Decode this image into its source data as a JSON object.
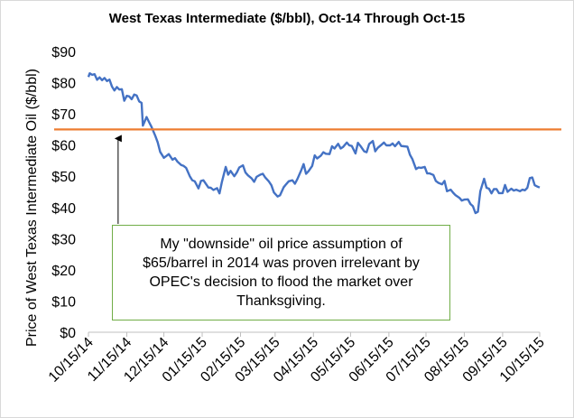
{
  "chart_data": {
    "type": "line",
    "title": "West Texas Intermediate ($/bbl), Oct-14 Through Oct-15",
    "ylabel": "Price of West Texas Intermediate Oil ($/bbl)",
    "xlabel": "",
    "ylim": [
      0,
      90
    ],
    "yticks": [
      "$0",
      "$10",
      "$20",
      "$30",
      "$40",
      "$50",
      "$60",
      "$70",
      "$80",
      "$90"
    ],
    "xlim": [
      "2014-10-15",
      "2015-10-15"
    ],
    "xticks": [
      "10/15/14",
      "11/15/14",
      "12/15/14",
      "01/15/15",
      "02/15/15",
      "03/15/15",
      "04/15/15",
      "05/15/15",
      "06/15/15",
      "07/15/15",
      "08/15/15",
      "09/15/15",
      "10/15/15"
    ],
    "grid": false,
    "colors": {
      "price": "#4472c4",
      "assumption": "#ed7d31",
      "note_border": "#70ad47",
      "axis": "#bfbfbf"
    },
    "series": [
      {
        "role": "price",
        "points": [
          [
            "2014-10-15",
            81.8
          ],
          [
            "2014-10-16",
            83.0
          ],
          [
            "2014-10-18",
            82.5
          ],
          [
            "2014-10-20",
            82.7
          ],
          [
            "2014-10-22",
            80.9
          ],
          [
            "2014-10-24",
            81.7
          ],
          [
            "2014-10-26",
            80.8
          ],
          [
            "2014-10-28",
            81.5
          ],
          [
            "2014-10-30",
            80.5
          ],
          [
            "2014-11-01",
            81.0
          ],
          [
            "2014-11-03",
            78.8
          ],
          [
            "2014-11-05",
            77.5
          ],
          [
            "2014-11-07",
            78.6
          ],
          [
            "2014-11-09",
            77.8
          ],
          [
            "2014-11-11",
            77.9
          ],
          [
            "2014-11-13",
            74.2
          ],
          [
            "2014-11-15",
            75.8
          ],
          [
            "2014-11-17",
            75.6
          ],
          [
            "2014-11-19",
            74.7
          ],
          [
            "2014-11-21",
            76.2
          ],
          [
            "2014-11-23",
            75.9
          ],
          [
            "2014-11-25",
            74.0
          ],
          [
            "2014-11-27",
            73.5
          ],
          [
            "2014-11-28",
            66.2
          ],
          [
            "2014-12-01",
            69.0
          ],
          [
            "2014-12-03",
            67.4
          ],
          [
            "2014-12-05",
            65.8
          ],
          [
            "2014-12-08",
            63.0
          ],
          [
            "2014-12-10",
            60.9
          ],
          [
            "2014-12-12",
            57.8
          ],
          [
            "2014-12-15",
            55.9
          ],
          [
            "2014-12-17",
            56.5
          ],
          [
            "2014-12-19",
            57.1
          ],
          [
            "2014-12-22",
            55.3
          ],
          [
            "2014-12-24",
            55.8
          ],
          [
            "2014-12-26",
            54.7
          ],
          [
            "2014-12-29",
            53.6
          ],
          [
            "2014-12-31",
            53.3
          ],
          [
            "2015-01-02",
            52.7
          ],
          [
            "2015-01-05",
            50.0
          ],
          [
            "2015-01-07",
            48.7
          ],
          [
            "2015-01-09",
            48.4
          ],
          [
            "2015-01-12",
            46.1
          ],
          [
            "2015-01-14",
            48.5
          ],
          [
            "2015-01-16",
            48.7
          ],
          [
            "2015-01-20",
            46.4
          ],
          [
            "2015-01-22",
            46.3
          ],
          [
            "2015-01-24",
            45.6
          ],
          [
            "2015-01-27",
            46.2
          ],
          [
            "2015-01-29",
            44.5
          ],
          [
            "2015-01-31",
            48.2
          ],
          [
            "2015-02-03",
            53.0
          ],
          [
            "2015-02-05",
            50.5
          ],
          [
            "2015-02-07",
            51.7
          ],
          [
            "2015-02-10",
            50.0
          ],
          [
            "2015-02-12",
            51.2
          ],
          [
            "2015-02-14",
            52.8
          ],
          [
            "2015-02-17",
            53.5
          ],
          [
            "2015-02-19",
            51.2
          ],
          [
            "2015-02-21",
            50.3
          ],
          [
            "2015-02-24",
            49.3
          ],
          [
            "2015-02-26",
            48.2
          ],
          [
            "2015-02-28",
            49.8
          ],
          [
            "2015-03-03",
            50.5
          ],
          [
            "2015-03-05",
            50.8
          ],
          [
            "2015-03-07",
            49.6
          ],
          [
            "2015-03-10",
            48.3
          ],
          [
            "2015-03-12",
            47.1
          ],
          [
            "2015-03-14",
            44.8
          ],
          [
            "2015-03-17",
            43.5
          ],
          [
            "2015-03-19",
            43.9
          ],
          [
            "2015-03-22",
            46.5
          ],
          [
            "2015-03-24",
            47.5
          ],
          [
            "2015-03-26",
            48.4
          ],
          [
            "2015-03-29",
            48.7
          ],
          [
            "2015-03-31",
            47.6
          ],
          [
            "2015-04-02",
            49.1
          ],
          [
            "2015-04-05",
            51.8
          ],
          [
            "2015-04-07",
            53.9
          ],
          [
            "2015-04-09",
            50.8
          ],
          [
            "2015-04-11",
            51.6
          ],
          [
            "2015-04-14",
            53.3
          ],
          [
            "2015-04-16",
            56.7
          ],
          [
            "2015-04-18",
            55.7
          ],
          [
            "2015-04-21",
            56.6
          ],
          [
            "2015-04-23",
            57.7
          ],
          [
            "2015-04-25",
            57.2
          ],
          [
            "2015-04-28",
            57.1
          ],
          [
            "2015-04-30",
            59.6
          ],
          [
            "2015-05-02",
            58.9
          ],
          [
            "2015-05-05",
            60.4
          ],
          [
            "2015-05-07",
            58.9
          ],
          [
            "2015-05-09",
            59.4
          ],
          [
            "2015-05-12",
            60.8
          ],
          [
            "2015-05-14",
            59.9
          ],
          [
            "2015-05-16",
            59.7
          ],
          [
            "2015-05-19",
            57.3
          ],
          [
            "2015-05-21",
            60.7
          ],
          [
            "2015-05-23",
            59.7
          ],
          [
            "2015-05-26",
            58.0
          ],
          [
            "2015-05-28",
            57.7
          ],
          [
            "2015-05-30",
            60.3
          ],
          [
            "2015-06-02",
            61.3
          ],
          [
            "2015-06-04",
            58.0
          ],
          [
            "2015-06-06",
            59.1
          ],
          [
            "2015-06-09",
            60.1
          ],
          [
            "2015-06-11",
            60.8
          ],
          [
            "2015-06-13",
            59.9
          ],
          [
            "2015-06-16",
            59.9
          ],
          [
            "2015-06-18",
            60.5
          ],
          [
            "2015-06-20",
            59.6
          ],
          [
            "2015-06-23",
            61.0
          ],
          [
            "2015-06-25",
            59.7
          ],
          [
            "2015-06-27",
            59.6
          ],
          [
            "2015-06-30",
            59.5
          ],
          [
            "2015-07-02",
            56.9
          ],
          [
            "2015-07-04",
            55.5
          ],
          [
            "2015-07-07",
            52.3
          ],
          [
            "2015-07-09",
            52.8
          ],
          [
            "2015-07-11",
            52.7
          ],
          [
            "2015-07-14",
            53.0
          ],
          [
            "2015-07-16",
            50.9
          ],
          [
            "2015-07-18",
            50.9
          ],
          [
            "2015-07-21",
            50.4
          ],
          [
            "2015-07-23",
            48.5
          ],
          [
            "2015-07-25",
            47.9
          ],
          [
            "2015-07-28",
            47.4
          ],
          [
            "2015-07-30",
            48.5
          ],
          [
            "2015-08-01",
            45.2
          ],
          [
            "2015-08-04",
            45.7
          ],
          [
            "2015-08-06",
            44.7
          ],
          [
            "2015-08-08",
            43.9
          ],
          [
            "2015-08-11",
            43.1
          ],
          [
            "2015-08-13",
            42.2
          ],
          [
            "2015-08-15",
            42.5
          ],
          [
            "2015-08-18",
            42.6
          ],
          [
            "2015-08-20",
            41.1
          ],
          [
            "2015-08-22",
            40.4
          ],
          [
            "2015-08-24",
            38.2
          ],
          [
            "2015-08-26",
            38.6
          ],
          [
            "2015-08-28",
            45.2
          ],
          [
            "2015-08-31",
            49.2
          ],
          [
            "2015-09-02",
            46.3
          ],
          [
            "2015-09-04",
            46.0
          ],
          [
            "2015-09-06",
            44.5
          ],
          [
            "2015-09-08",
            45.9
          ],
          [
            "2015-09-10",
            45.9
          ],
          [
            "2015-09-12",
            44.6
          ],
          [
            "2015-09-15",
            44.6
          ],
          [
            "2015-09-17",
            47.2
          ],
          [
            "2015-09-19",
            45.0
          ],
          [
            "2015-09-22",
            46.0
          ],
          [
            "2015-09-24",
            45.4
          ],
          [
            "2015-09-26",
            45.7
          ],
          [
            "2015-09-29",
            45.2
          ],
          [
            "2015-10-01",
            45.7
          ],
          [
            "2015-10-03",
            45.5
          ],
          [
            "2015-10-05",
            46.3
          ],
          [
            "2015-10-07",
            49.4
          ],
          [
            "2015-10-09",
            49.6
          ],
          [
            "2015-10-11",
            47.1
          ],
          [
            "2015-10-13",
            46.7
          ],
          [
            "2015-10-15",
            46.4
          ]
        ]
      },
      {
        "role": "assumption",
        "value": 65
      }
    ],
    "annotation": {
      "text": "My \"downside\" oil price assumption of $65/barrel in 2014 was proven irrelevant by OPEC's decision to flood the market over Thanksgiving.",
      "arrow_target": [
        "2014-11-08",
        65
      ]
    }
  }
}
